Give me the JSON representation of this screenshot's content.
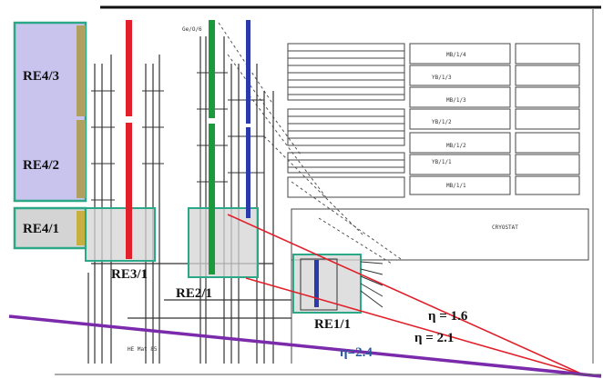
{
  "station_labels": {
    "re43": "RE4/3",
    "re42": "RE4/2",
    "re41": "RE4/1",
    "re31": "RE3/1",
    "re21": "RE2/1",
    "re11": "RE1/1"
  },
  "eta_labels": {
    "eta16": "η = 1.6",
    "eta21": "η = 2.1",
    "eta24": "η=2.4"
  },
  "barrel_labels": {
    "mb14": "MB/1/4",
    "mb13_small": "YB/1/3",
    "mb13": "MB/1/3",
    "mb12_small": "YB/1/2",
    "mb12": "MB/1/2",
    "mb11_small": "YB/1/1",
    "mb11": "MB/1/1",
    "cryostat": "CRYOSTAT"
  },
  "misc_labels": {
    "top_small": "Ge/O/6",
    "bottom_small": "HE Mat 85"
  },
  "colors": {
    "red": "#e0202a",
    "green": "#1a9a3a",
    "blue": "#2a3aaa",
    "purple": "#7a2aaa",
    "teal_box": "#2aa888",
    "lavender": "#c8c4ee",
    "gray_fill": "#d4d4d4",
    "eta24_text": "#2a5a9a"
  }
}
